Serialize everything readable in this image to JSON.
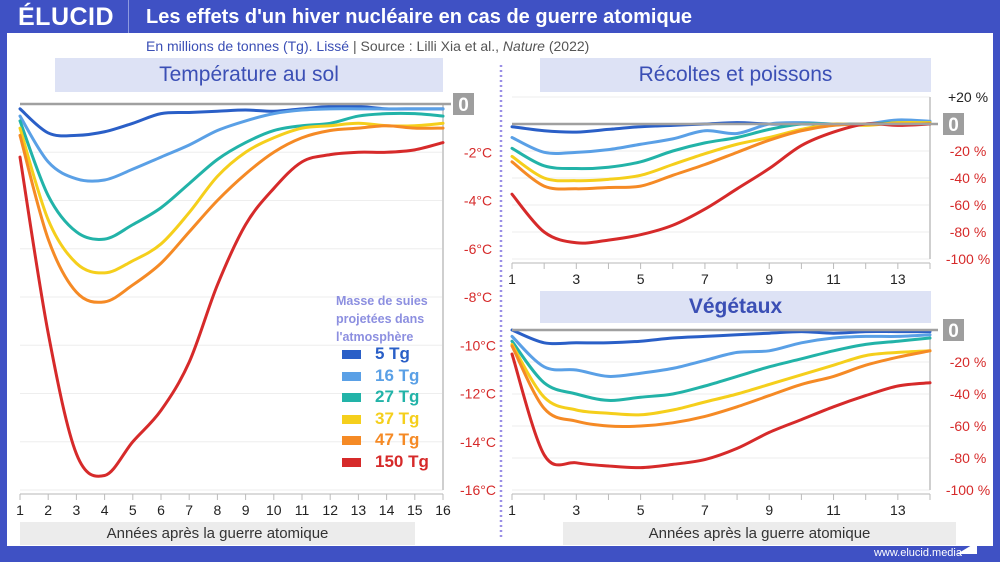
{
  "header": {
    "logo": "ÉLUCID",
    "title": "Les effets d'un hiver nucléaire en cas de guerre atomique"
  },
  "subtitle": {
    "main": "En millions de tonnes (Tg). Lissé",
    "sep": "|",
    "source": "Source : Lilli Xia et al., ",
    "journal": "Nature",
    "year": " (2022)"
  },
  "footer": {
    "url": "www.elucid.media"
  },
  "legend": {
    "title": "Masse de suies projetées dans l'atmosphère"
  },
  "series": [
    {
      "name": "5 Tg",
      "color": "#2a5fc7"
    },
    {
      "name": "16 Tg",
      "color": "#5aa0e6"
    },
    {
      "name": "27 Tg",
      "color": "#22b3a8"
    },
    {
      "name": "37 Tg",
      "color": "#f5cf1c"
    },
    {
      "name": "47 Tg",
      "color": "#f58a25"
    },
    {
      "name": "150 Tg",
      "color": "#d62a2a"
    }
  ],
  "chart_data": [
    {
      "type": "line",
      "title": "Température au sol",
      "xlabel": "Années après la guerre atomique",
      "ylabel": "",
      "x": [
        1,
        2,
        3,
        4,
        5,
        6,
        7,
        8,
        9,
        10,
        11,
        12,
        13,
        14,
        15,
        16
      ],
      "xticks": [
        "1",
        "2",
        "3",
        "4",
        "5",
        "6",
        "7",
        "8",
        "9",
        "10",
        "11",
        "12",
        "13",
        "14",
        "15",
        "16"
      ],
      "ylim": [
        -16,
        0
      ],
      "yticks": [
        "0",
        "-2°C",
        "-4°C",
        "-6°C",
        "-8°C",
        "-10°C",
        "-12°C",
        "-14°C",
        "-16°C"
      ],
      "grid": true,
      "legend": "bottom-right",
      "series": [
        {
          "name": "5 Tg",
          "values": [
            -0.2,
            -1.2,
            -1.3,
            -1.15,
            -0.8,
            -0.4,
            -0.35,
            -0.3,
            -0.25,
            -0.3,
            -0.2,
            -0.1,
            -0.1,
            -0.2,
            -0.2,
            -0.2
          ]
        },
        {
          "name": "16 Tg",
          "values": [
            -0.5,
            -2.4,
            -3.1,
            -3.15,
            -2.7,
            -2.2,
            -1.7,
            -1.1,
            -0.7,
            -0.4,
            -0.25,
            -0.2,
            -0.2,
            -0.2,
            -0.2,
            -0.2
          ]
        },
        {
          "name": "27 Tg",
          "values": [
            -0.7,
            -3.8,
            -5.3,
            -5.6,
            -5.0,
            -4.3,
            -3.3,
            -2.3,
            -1.6,
            -1.1,
            -0.9,
            -0.8,
            -0.5,
            -0.4,
            -0.4,
            -0.5
          ]
        },
        {
          "name": "37 Tg",
          "values": [
            -1.0,
            -4.8,
            -6.6,
            -7.0,
            -6.5,
            -5.8,
            -4.5,
            -3.0,
            -2.0,
            -1.4,
            -1.0,
            -0.9,
            -0.8,
            -0.9,
            -0.9,
            -0.8
          ]
        },
        {
          "name": "47 Tg",
          "values": [
            -1.3,
            -5.6,
            -7.8,
            -8.2,
            -7.5,
            -6.6,
            -5.3,
            -4.0,
            -2.9,
            -2.0,
            -1.4,
            -1.1,
            -1.0,
            -0.9,
            -1.0,
            -1.0
          ]
        },
        {
          "name": "150 Tg",
          "values": [
            -2.2,
            -9.5,
            -14.5,
            -15.4,
            -14.0,
            -12.7,
            -10.7,
            -7.5,
            -5.0,
            -3.5,
            -2.4,
            -2.1,
            -2.0,
            -2.0,
            -1.9,
            -1.6
          ]
        }
      ]
    },
    {
      "type": "line",
      "title": "Récoltes et poissons",
      "xlabel": "",
      "x": [
        1,
        2,
        3,
        4,
        5,
        6,
        7,
        8,
        9,
        10,
        11,
        12,
        13,
        14
      ],
      "xticks": [
        "1",
        "3",
        "5",
        "7",
        "9",
        "11",
        "13"
      ],
      "ylim": [
        -100,
        20
      ],
      "yticks": [
        "+20 %",
        "0",
        "-20 %",
        "-40 %",
        "-60 %",
        "-80 %",
        "-100 %"
      ],
      "grid": true,
      "series": [
        {
          "name": "5 Tg",
          "values": [
            -2,
            -5,
            -6,
            -4,
            -2,
            -1,
            0,
            1,
            0,
            0,
            0,
            0,
            2,
            1
          ]
        },
        {
          "name": "16 Tg",
          "values": [
            -10,
            -21,
            -21,
            -19,
            -15,
            -11,
            -5,
            -7,
            0,
            1,
            0,
            0,
            3,
            2
          ]
        },
        {
          "name": "27 Tg",
          "values": [
            -18,
            -31,
            -33,
            -32,
            -28,
            -20,
            -14,
            -10,
            -4,
            0,
            0,
            0,
            1,
            1
          ]
        },
        {
          "name": "37 Tg",
          "values": [
            -24,
            -40,
            -42,
            -41,
            -38,
            -30,
            -22,
            -15,
            -10,
            -4,
            0,
            -1,
            1,
            1
          ]
        },
        {
          "name": "47 Tg",
          "values": [
            -28,
            -46,
            -48,
            -47,
            -46,
            -38,
            -30,
            -21,
            -12,
            -5,
            -1,
            0,
            0,
            0
          ]
        },
        {
          "name": "150 Tg",
          "values": [
            -52,
            -80,
            -88,
            -86,
            -82,
            -75,
            -63,
            -48,
            -33,
            -16,
            -6,
            0,
            -1,
            0
          ]
        }
      ]
    },
    {
      "type": "line",
      "title": "Végétaux",
      "xlabel": "Années après la guerre atomique",
      "x": [
        1,
        2,
        3,
        4,
        5,
        6,
        7,
        8,
        9,
        10,
        11,
        12,
        13,
        14
      ],
      "xticks": [
        "1",
        "3",
        "5",
        "7",
        "9",
        "11",
        "13"
      ],
      "ylim": [
        -100,
        0
      ],
      "yticks": [
        "0",
        "-20 %",
        "-40 %",
        "-60 %",
        "-80 %",
        "-100 %"
      ],
      "grid": true,
      "series": [
        {
          "name": "5 Tg",
          "values": [
            0,
            -8,
            -8,
            -8,
            -7,
            -5,
            -4,
            -3,
            -2,
            -1,
            -2,
            -1,
            -1,
            -1
          ]
        },
        {
          "name": "16 Tg",
          "values": [
            -4,
            -23,
            -25,
            -29,
            -27,
            -24,
            -19,
            -14,
            -13,
            -8,
            -5,
            -4,
            -4,
            -3
          ]
        },
        {
          "name": "27 Tg",
          "values": [
            -7,
            -33,
            -40,
            -44,
            -42,
            -40,
            -35,
            -29,
            -23,
            -18,
            -13,
            -9,
            -7,
            -5
          ]
        },
        {
          "name": "37 Tg",
          "values": [
            -9,
            -42,
            -50,
            -52,
            -53,
            -50,
            -45,
            -40,
            -34,
            -28,
            -22,
            -16,
            -14,
            -13
          ]
        },
        {
          "name": "47 Tg",
          "values": [
            -10,
            -49,
            -57,
            -60,
            -60,
            -58,
            -54,
            -48,
            -41,
            -34,
            -29,
            -22,
            -17,
            -13
          ]
        },
        {
          "name": "150 Tg",
          "values": [
            -15,
            -78,
            -83,
            -85,
            -86,
            -84,
            -81,
            -74,
            -64,
            -56,
            -48,
            -41,
            -35,
            -33
          ]
        }
      ]
    }
  ]
}
